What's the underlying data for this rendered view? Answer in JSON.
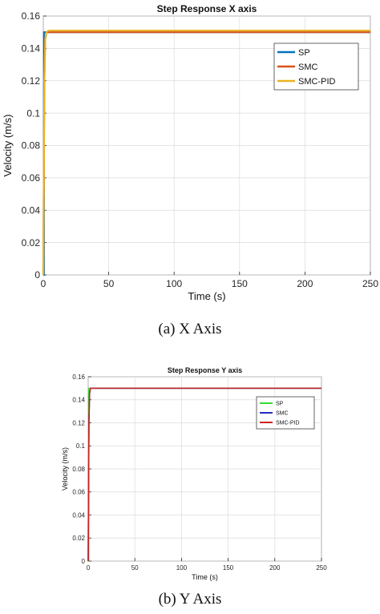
{
  "chart_data": [
    {
      "type": "line",
      "title": "Step Response X axis",
      "xlabel": "Time (s)",
      "ylabel": "Velocity (m/s)",
      "xlim": [
        0,
        250
      ],
      "ylim": [
        0,
        0.16
      ],
      "xticks": [
        0,
        50,
        100,
        150,
        200,
        250
      ],
      "yticks": [
        0,
        0.02,
        0.04,
        0.06,
        0.08,
        0.1,
        0.12,
        0.14,
        0.16
      ],
      "grid": true,
      "legend_position": "top-right",
      "series": [
        {
          "name": "SP",
          "color": "#0072BD",
          "x": [
            0,
            0.5,
            0.5,
            250
          ],
          "y": [
            0,
            0,
            0.15,
            0.15
          ]
        },
        {
          "name": "SMC",
          "color": "#D95319",
          "x": [
            0,
            0.8,
            1.5,
            2.5,
            4,
            250
          ],
          "y": [
            0,
            0.12,
            0.146,
            0.15,
            0.15,
            0.15
          ]
        },
        {
          "name": "SMC-PID",
          "color": "#EDB120",
          "x": [
            0,
            0.8,
            1.5,
            2.5,
            4,
            250
          ],
          "y": [
            0,
            0.12,
            0.146,
            0.15,
            0.151,
            0.151
          ]
        }
      ]
    },
    {
      "type": "line",
      "title": "Step Response Y axis",
      "xlabel": "Time (s)",
      "ylabel": "Velocity (m/s)",
      "xlim": [
        0,
        250
      ],
      "ylim": [
        0,
        0.16
      ],
      "xticks": [
        0,
        50,
        100,
        150,
        200,
        250
      ],
      "yticks": [
        0,
        0.02,
        0.04,
        0.06,
        0.08,
        0.1,
        0.12,
        0.14,
        0.16
      ],
      "grid": true,
      "legend_position": "top-right",
      "series": [
        {
          "name": "SP",
          "color": "#33DD33",
          "x": [
            0,
            0.5,
            0.5,
            250
          ],
          "y": [
            0,
            0,
            0.15,
            0.15
          ]
        },
        {
          "name": "SMC",
          "color": "#1F2FBF",
          "x": [
            0,
            0.8,
            1.5,
            2.5,
            4,
            250
          ],
          "y": [
            0,
            0.12,
            0.146,
            0.15,
            0.15,
            0.15
          ]
        },
        {
          "name": "SMC-PID",
          "color": "#CC2222",
          "x": [
            0,
            0.8,
            1.5,
            2.5,
            4,
            250
          ],
          "y": [
            0,
            0.12,
            0.146,
            0.15,
            0.15,
            0.15
          ]
        }
      ]
    }
  ],
  "captions": {
    "a": "(a)  X Axis",
    "b": "(b)  Y Axis"
  }
}
